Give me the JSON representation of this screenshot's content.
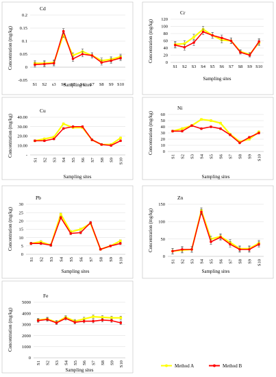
{
  "legend": {
    "items": [
      {
        "label": "Method A",
        "color": "#ffff00"
      },
      {
        "label": "Method B",
        "color": "#ff0000"
      }
    ]
  },
  "colors": {
    "method_a": "#ffff00",
    "method_b": "#ff0000",
    "error_bar": "#555555"
  },
  "chart_data": [
    {
      "type": "line",
      "title": "Cd",
      "xlabel": "Sampling sites",
      "ylabel": "Concentration (mg/kg)",
      "categories": [
        "S1",
        "S2",
        "s3",
        "S4",
        "S5",
        "S6",
        "S7",
        "S8",
        "S9",
        "S10"
      ],
      "ylim": [
        -0.05,
        0.2
      ],
      "yticks": [
        -0.05,
        0,
        0.05,
        0.1,
        0.15,
        0.2
      ],
      "ytick_labels": [
        "-0.05",
        "0",
        "0.05",
        "0.1",
        "0.15",
        "0.2"
      ],
      "grid": true,
      "series": [
        {
          "name": "Method A",
          "values": [
            0.015,
            0.015,
            0.018,
            0.125,
            0.045,
            0.06,
            0.045,
            0.025,
            0.03,
            0.04
          ],
          "errors": [
            0.01,
            0.01,
            0.01,
            0.01,
            0.01,
            0.01,
            0.01,
            0.01,
            0.01,
            0.01
          ]
        },
        {
          "name": "Method B",
          "values": [
            0.01,
            0.012,
            0.015,
            0.138,
            0.032,
            0.05,
            0.045,
            0.018,
            0.025,
            0.035
          ],
          "errors": [
            0.01,
            0.01,
            0.01,
            0.01,
            0.01,
            0.01,
            0.01,
            0.01,
            0.01,
            0.01
          ]
        }
      ]
    },
    {
      "type": "line",
      "title": "Cr",
      "xlabel": "Sampling sites",
      "ylabel": "Concentration (mg/kg)",
      "categories": [
        "S1",
        "S2",
        "S3",
        "S4",
        "S5",
        "S6",
        "S7",
        "S8",
        "S9",
        "S10"
      ],
      "ylim": [
        0,
        120
      ],
      "yticks": [
        0,
        20,
        40,
        60,
        80,
        100,
        120
      ],
      "ytick_labels": [
        "0",
        "20",
        "40",
        "60",
        "80",
        "100",
        "120"
      ],
      "grid": true,
      "series": [
        {
          "name": "Method A",
          "values": [
            50,
            52,
            70,
            92,
            75,
            62,
            60,
            30,
            22,
            55
          ],
          "errors": [
            8,
            8,
            8,
            8,
            8,
            8,
            8,
            5,
            5,
            8
          ]
        },
        {
          "name": "Method B",
          "values": [
            48,
            42,
            55,
            85,
            75,
            68,
            60,
            28,
            20,
            58
          ],
          "errors": [
            8,
            8,
            8,
            8,
            8,
            8,
            8,
            5,
            5,
            8
          ]
        }
      ]
    },
    {
      "type": "line",
      "title": "Cu",
      "xlabel": "Sampling sites",
      "ylabel": "Concentration (mg/kg)",
      "categories": [
        "S1",
        "S2",
        "S3",
        "S4",
        "S5",
        "S6",
        "S7",
        "S8",
        "S9",
        "S10"
      ],
      "ylim": [
        0,
        40
      ],
      "yticks": [
        0,
        10,
        20,
        30,
        40
      ],
      "ytick_labels": [
        "-",
        "10.00",
        "20.00",
        "30.00",
        "40.00"
      ],
      "grid": true,
      "series": [
        {
          "name": "Method A",
          "values": [
            15,
            17,
            19,
            33,
            29,
            29,
            16,
            11,
            11,
            18
          ],
          "errors": [
            1,
            1,
            1,
            1,
            1,
            1,
            1,
            1,
            1,
            1
          ]
        },
        {
          "name": "Method B",
          "values": [
            15,
            15,
            17,
            28,
            30,
            30,
            16,
            11,
            10,
            15
          ],
          "errors": [
            1,
            1,
            1,
            1,
            1,
            1,
            1,
            1,
            1,
            1
          ]
        }
      ]
    },
    {
      "type": "line",
      "title": "Ni",
      "xlabel": "Sampling sites",
      "ylabel": "Concentration (mg/kg)",
      "categories": [
        "S1",
        "S2",
        "S3",
        "S4",
        "S5",
        "S6",
        "S7",
        "S8",
        "S9",
        "S10"
      ],
      "ylim": [
        0,
        60
      ],
      "yticks": [
        0,
        10,
        20,
        30,
        40,
        50,
        60
      ],
      "ytick_labels": [
        "0",
        "10",
        "20",
        "30",
        "40",
        "50",
        "60"
      ],
      "grid": true,
      "series": [
        {
          "name": "Method A",
          "values": [
            33,
            37,
            42,
            52,
            50,
            46,
            28,
            16,
            20,
            32
          ],
          "errors": [
            1.5,
            1.5,
            1.5,
            1.5,
            1.5,
            1.5,
            1.5,
            1.5,
            1.5,
            1.5
          ]
        },
        {
          "name": "Method B",
          "values": [
            33,
            33,
            42,
            37,
            40,
            37,
            27,
            14,
            23,
            30
          ],
          "errors": [
            1.5,
            1.5,
            1.5,
            1.5,
            1.5,
            1.5,
            1.5,
            1.5,
            1.5,
            1.5
          ]
        }
      ]
    },
    {
      "type": "line",
      "title": "Pb",
      "xlabel": "Sampling sites",
      "ylabel": "Concentration (mg/kg)",
      "categories": [
        "S1",
        "S2",
        "S3",
        "S4",
        "S5",
        "S6",
        "S7",
        "S8",
        "S9",
        "S10"
      ],
      "ylim": [
        0,
        30
      ],
      "yticks": [
        0,
        5,
        10,
        15,
        20,
        25,
        30
      ],
      "ytick_labels": [
        "0",
        "5",
        "10",
        "15",
        "20",
        "25",
        "30"
      ],
      "grid": true,
      "series": [
        {
          "name": "Method A",
          "values": [
            6.5,
            7.5,
            5.5,
            24,
            13.5,
            15,
            18.5,
            3,
            5,
            8
          ],
          "errors": [
            0.7,
            0.7,
            0.7,
            0.7,
            0.7,
            0.7,
            0.7,
            0.5,
            0.5,
            0.7
          ]
        },
        {
          "name": "Method B",
          "values": [
            6.5,
            6.5,
            5.5,
            22,
            12.5,
            13,
            19,
            3,
            5,
            6.5
          ],
          "errors": [
            0.7,
            0.7,
            0.7,
            0.7,
            0.7,
            0.7,
            0.7,
            0.5,
            0.5,
            0.7
          ]
        }
      ]
    },
    {
      "type": "line",
      "title": "Zn",
      "xlabel": "Sampling sites",
      "ylabel": "Concentration (mg/kg)",
      "categories": [
        "S1",
        "S2",
        "S3",
        "S4",
        "S5",
        "S6",
        "S7",
        "S8",
        "S9",
        "S10"
      ],
      "ylim": [
        0,
        150
      ],
      "yticks": [
        0,
        50,
        100,
        150
      ],
      "ytick_labels": [
        "0",
        "50",
        "100",
        "150"
      ],
      "grid": true,
      "series": [
        {
          "name": "Method A",
          "values": [
            15,
            18,
            20,
            132,
            50,
            57,
            40,
            22,
            22,
            38
          ],
          "errors": [
            8,
            8,
            8,
            8,
            8,
            8,
            8,
            8,
            8,
            8
          ]
        },
        {
          "name": "Method B",
          "values": [
            15,
            20,
            20,
            128,
            42,
            55,
            35,
            20,
            20,
            35
          ],
          "errors": [
            8,
            8,
            8,
            8,
            8,
            8,
            8,
            8,
            8,
            8
          ]
        }
      ]
    },
    {
      "type": "line",
      "title": "Fe",
      "xlabel": "Sampling sites",
      "ylabel": "Concentration (mg/kg)",
      "categories": [
        "S1",
        "S2",
        "S3",
        "S4",
        "S5",
        "S6",
        "S7",
        "S8",
        "S9",
        "S10"
      ],
      "ylim": [
        0,
        5000
      ],
      "yticks": [
        0,
        1000,
        2000,
        3000,
        4000,
        5000
      ],
      "ytick_labels": [
        "0",
        "1000",
        "2000",
        "3000",
        "4000",
        "5000"
      ],
      "grid": true,
      "series": [
        {
          "name": "Method A",
          "values": [
            3400,
            3500,
            3200,
            3650,
            3300,
            3500,
            3700,
            3650,
            3600,
            3600
          ],
          "errors": [
            150,
            150,
            150,
            150,
            150,
            150,
            150,
            150,
            150,
            150
          ]
        },
        {
          "name": "Method B",
          "values": [
            3350,
            3450,
            3150,
            3550,
            3200,
            3300,
            3300,
            3400,
            3350,
            3150
          ],
          "errors": [
            150,
            150,
            150,
            150,
            150,
            150,
            150,
            150,
            150,
            150
          ]
        }
      ]
    }
  ]
}
